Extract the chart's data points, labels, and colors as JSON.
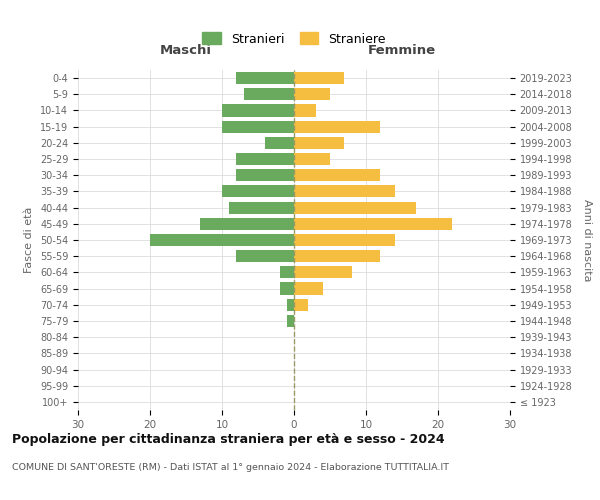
{
  "age_groups": [
    "100+",
    "95-99",
    "90-94",
    "85-89",
    "80-84",
    "75-79",
    "70-74",
    "65-69",
    "60-64",
    "55-59",
    "50-54",
    "45-49",
    "40-44",
    "35-39",
    "30-34",
    "25-29",
    "20-24",
    "15-19",
    "10-14",
    "5-9",
    "0-4"
  ],
  "birth_years": [
    "≤ 1923",
    "1924-1928",
    "1929-1933",
    "1934-1938",
    "1939-1943",
    "1944-1948",
    "1949-1953",
    "1954-1958",
    "1959-1963",
    "1964-1968",
    "1969-1973",
    "1974-1978",
    "1979-1983",
    "1984-1988",
    "1989-1993",
    "1994-1998",
    "1999-2003",
    "2004-2008",
    "2009-2013",
    "2014-2018",
    "2019-2023"
  ],
  "males": [
    0,
    0,
    0,
    0,
    0,
    1,
    1,
    2,
    2,
    8,
    20,
    13,
    9,
    10,
    8,
    8,
    4,
    10,
    10,
    7,
    8
  ],
  "females": [
    0,
    0,
    0,
    0,
    0,
    0,
    2,
    4,
    8,
    12,
    14,
    22,
    17,
    14,
    12,
    5,
    7,
    12,
    3,
    5,
    7
  ],
  "male_color": "#6aaa5e",
  "female_color": "#f5be41",
  "dashed_line_color": "#999966",
  "grid_color": "#dddddd",
  "title": "Popolazione per cittadinanza straniera per età e sesso - 2024",
  "subtitle": "COMUNE DI SANT'ORESTE (RM) - Dati ISTAT al 1° gennaio 2024 - Elaborazione TUTTITALIA.IT",
  "legend_male": "Stranieri",
  "legend_female": "Straniere",
  "label_left": "Maschi",
  "label_right": "Femmine",
  "ylabel_left": "Fasce di età",
  "ylabel_right": "Anni di nascita",
  "xlim": 30,
  "background_color": "#ffffff"
}
